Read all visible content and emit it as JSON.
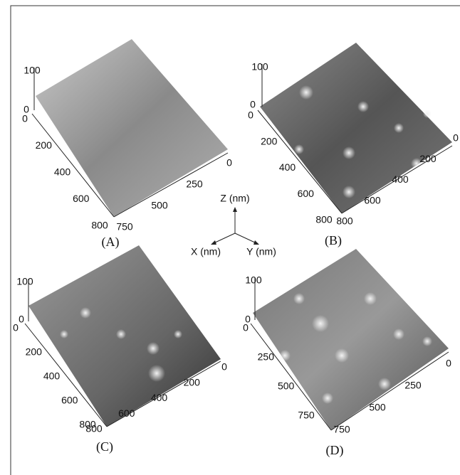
{
  "panels": [
    {
      "label": "(A)",
      "z_ticks": [
        100,
        0
      ],
      "left_ticks": [
        0,
        200,
        400,
        600,
        800
      ],
      "right_ticks": [
        0,
        250,
        500,
        750
      ]
    },
    {
      "label": "(B)",
      "z_ticks": [
        100,
        0
      ],
      "left_ticks": [
        0,
        200,
        400,
        600,
        800
      ],
      "right_ticks": [
        0,
        200,
        400,
        600,
        800
      ]
    },
    {
      "label": "(C)",
      "z_ticks": [
        100,
        0
      ],
      "left_ticks": [
        0,
        200,
        400,
        600,
        800
      ],
      "right_ticks": [
        0,
        200,
        400,
        600,
        800
      ]
    },
    {
      "label": "(D)",
      "z_ticks": [
        100,
        0
      ],
      "left_ticks": [
        0,
        250,
        500,
        750
      ],
      "right_ticks": [
        0,
        250,
        500,
        750
      ]
    }
  ],
  "axes_legend": {
    "z": "Z (nm)",
    "x": "X (nm)",
    "y": "Y (nm)"
  }
}
